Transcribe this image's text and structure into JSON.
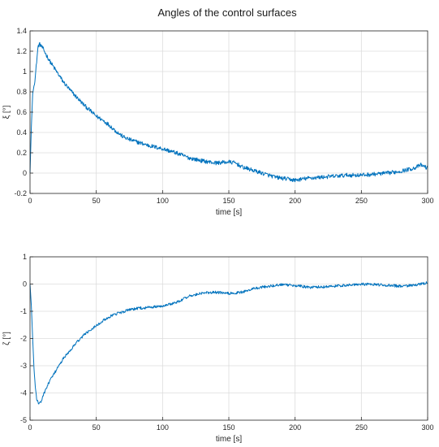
{
  "figure_title": "Angles of the control surfaces",
  "colors": {
    "series": "#0072BD",
    "grid": "#dcdcdc",
    "axes": "#262626",
    "background": "#ffffff"
  },
  "chart_data": [
    {
      "type": "line",
      "title": "",
      "xlabel": "time [s]",
      "ylabel": "ξ [°]",
      "xlim": [
        0,
        300
      ],
      "ylim": [
        -0.2,
        1.4
      ],
      "xticks": [
        0,
        50,
        100,
        150,
        200,
        250,
        300
      ],
      "yticks": [
        -0.2,
        0,
        0.2,
        0.4,
        0.6,
        0.8,
        1,
        1.2,
        1.4
      ],
      "grid": true,
      "legend": "none",
      "series": [
        {
          "noise_amplitude": 0.02,
          "x": [
            0,
            1,
            2,
            3,
            4,
            5,
            6,
            7,
            8,
            10,
            12,
            15,
            20,
            25,
            30,
            35,
            40,
            45,
            50,
            55,
            60,
            65,
            70,
            75,
            80,
            90,
            100,
            110,
            120,
            130,
            140,
            150,
            155,
            160,
            165,
            170,
            175,
            180,
            185,
            190,
            195,
            200,
            205,
            210,
            220,
            230,
            240,
            250,
            260,
            270,
            280,
            290,
            295,
            300
          ],
          "y": [
            0.0,
            0.45,
            0.78,
            0.86,
            0.95,
            1.1,
            1.24,
            1.27,
            1.26,
            1.22,
            1.17,
            1.1,
            1.0,
            0.9,
            0.82,
            0.75,
            0.68,
            0.62,
            0.56,
            0.52,
            0.47,
            0.41,
            0.36,
            0.33,
            0.31,
            0.27,
            0.24,
            0.2,
            0.15,
            0.12,
            0.1,
            0.11,
            0.1,
            0.06,
            0.04,
            0.02,
            0.0,
            -0.02,
            -0.04,
            -0.05,
            -0.06,
            -0.07,
            -0.06,
            -0.05,
            -0.04,
            -0.03,
            -0.02,
            -0.02,
            -0.01,
            0.0,
            0.02,
            0.05,
            0.08,
            0.05
          ]
        }
      ]
    },
    {
      "type": "line",
      "title": "",
      "xlabel": "time [s]",
      "ylabel": "ζ [°]",
      "xlim": [
        0,
        300
      ],
      "ylim": [
        -5,
        1
      ],
      "xticks": [
        0,
        50,
        100,
        150,
        200,
        250,
        300
      ],
      "yticks": [
        -5,
        -4,
        -3,
        -2,
        -1,
        0,
        1
      ],
      "grid": true,
      "legend": "none",
      "series": [
        {
          "noise_amplitude": 0.05,
          "x": [
            0,
            1,
            2,
            3,
            4,
            5,
            6,
            7,
            8,
            10,
            12,
            15,
            20,
            25,
            30,
            35,
            40,
            45,
            50,
            55,
            60,
            65,
            70,
            75,
            80,
            85,
            90,
            95,
            100,
            110,
            120,
            130,
            140,
            150,
            160,
            170,
            180,
            190,
            200,
            210,
            220,
            230,
            240,
            250,
            260,
            270,
            280,
            290,
            300
          ],
          "y": [
            0.0,
            -0.8,
            -2.0,
            -3.1,
            -3.8,
            -4.2,
            -4.35,
            -4.4,
            -4.35,
            -4.1,
            -3.85,
            -3.55,
            -3.15,
            -2.75,
            -2.45,
            -2.15,
            -1.9,
            -1.7,
            -1.52,
            -1.35,
            -1.2,
            -1.1,
            -1.02,
            -0.95,
            -0.9,
            -0.88,
            -0.86,
            -0.83,
            -0.8,
            -0.68,
            -0.45,
            -0.33,
            -0.3,
            -0.35,
            -0.3,
            -0.15,
            -0.08,
            -0.02,
            -0.05,
            -0.12,
            -0.1,
            -0.08,
            -0.03,
            0.0,
            -0.02,
            -0.05,
            -0.08,
            -0.05,
            0.05
          ]
        }
      ]
    }
  ]
}
